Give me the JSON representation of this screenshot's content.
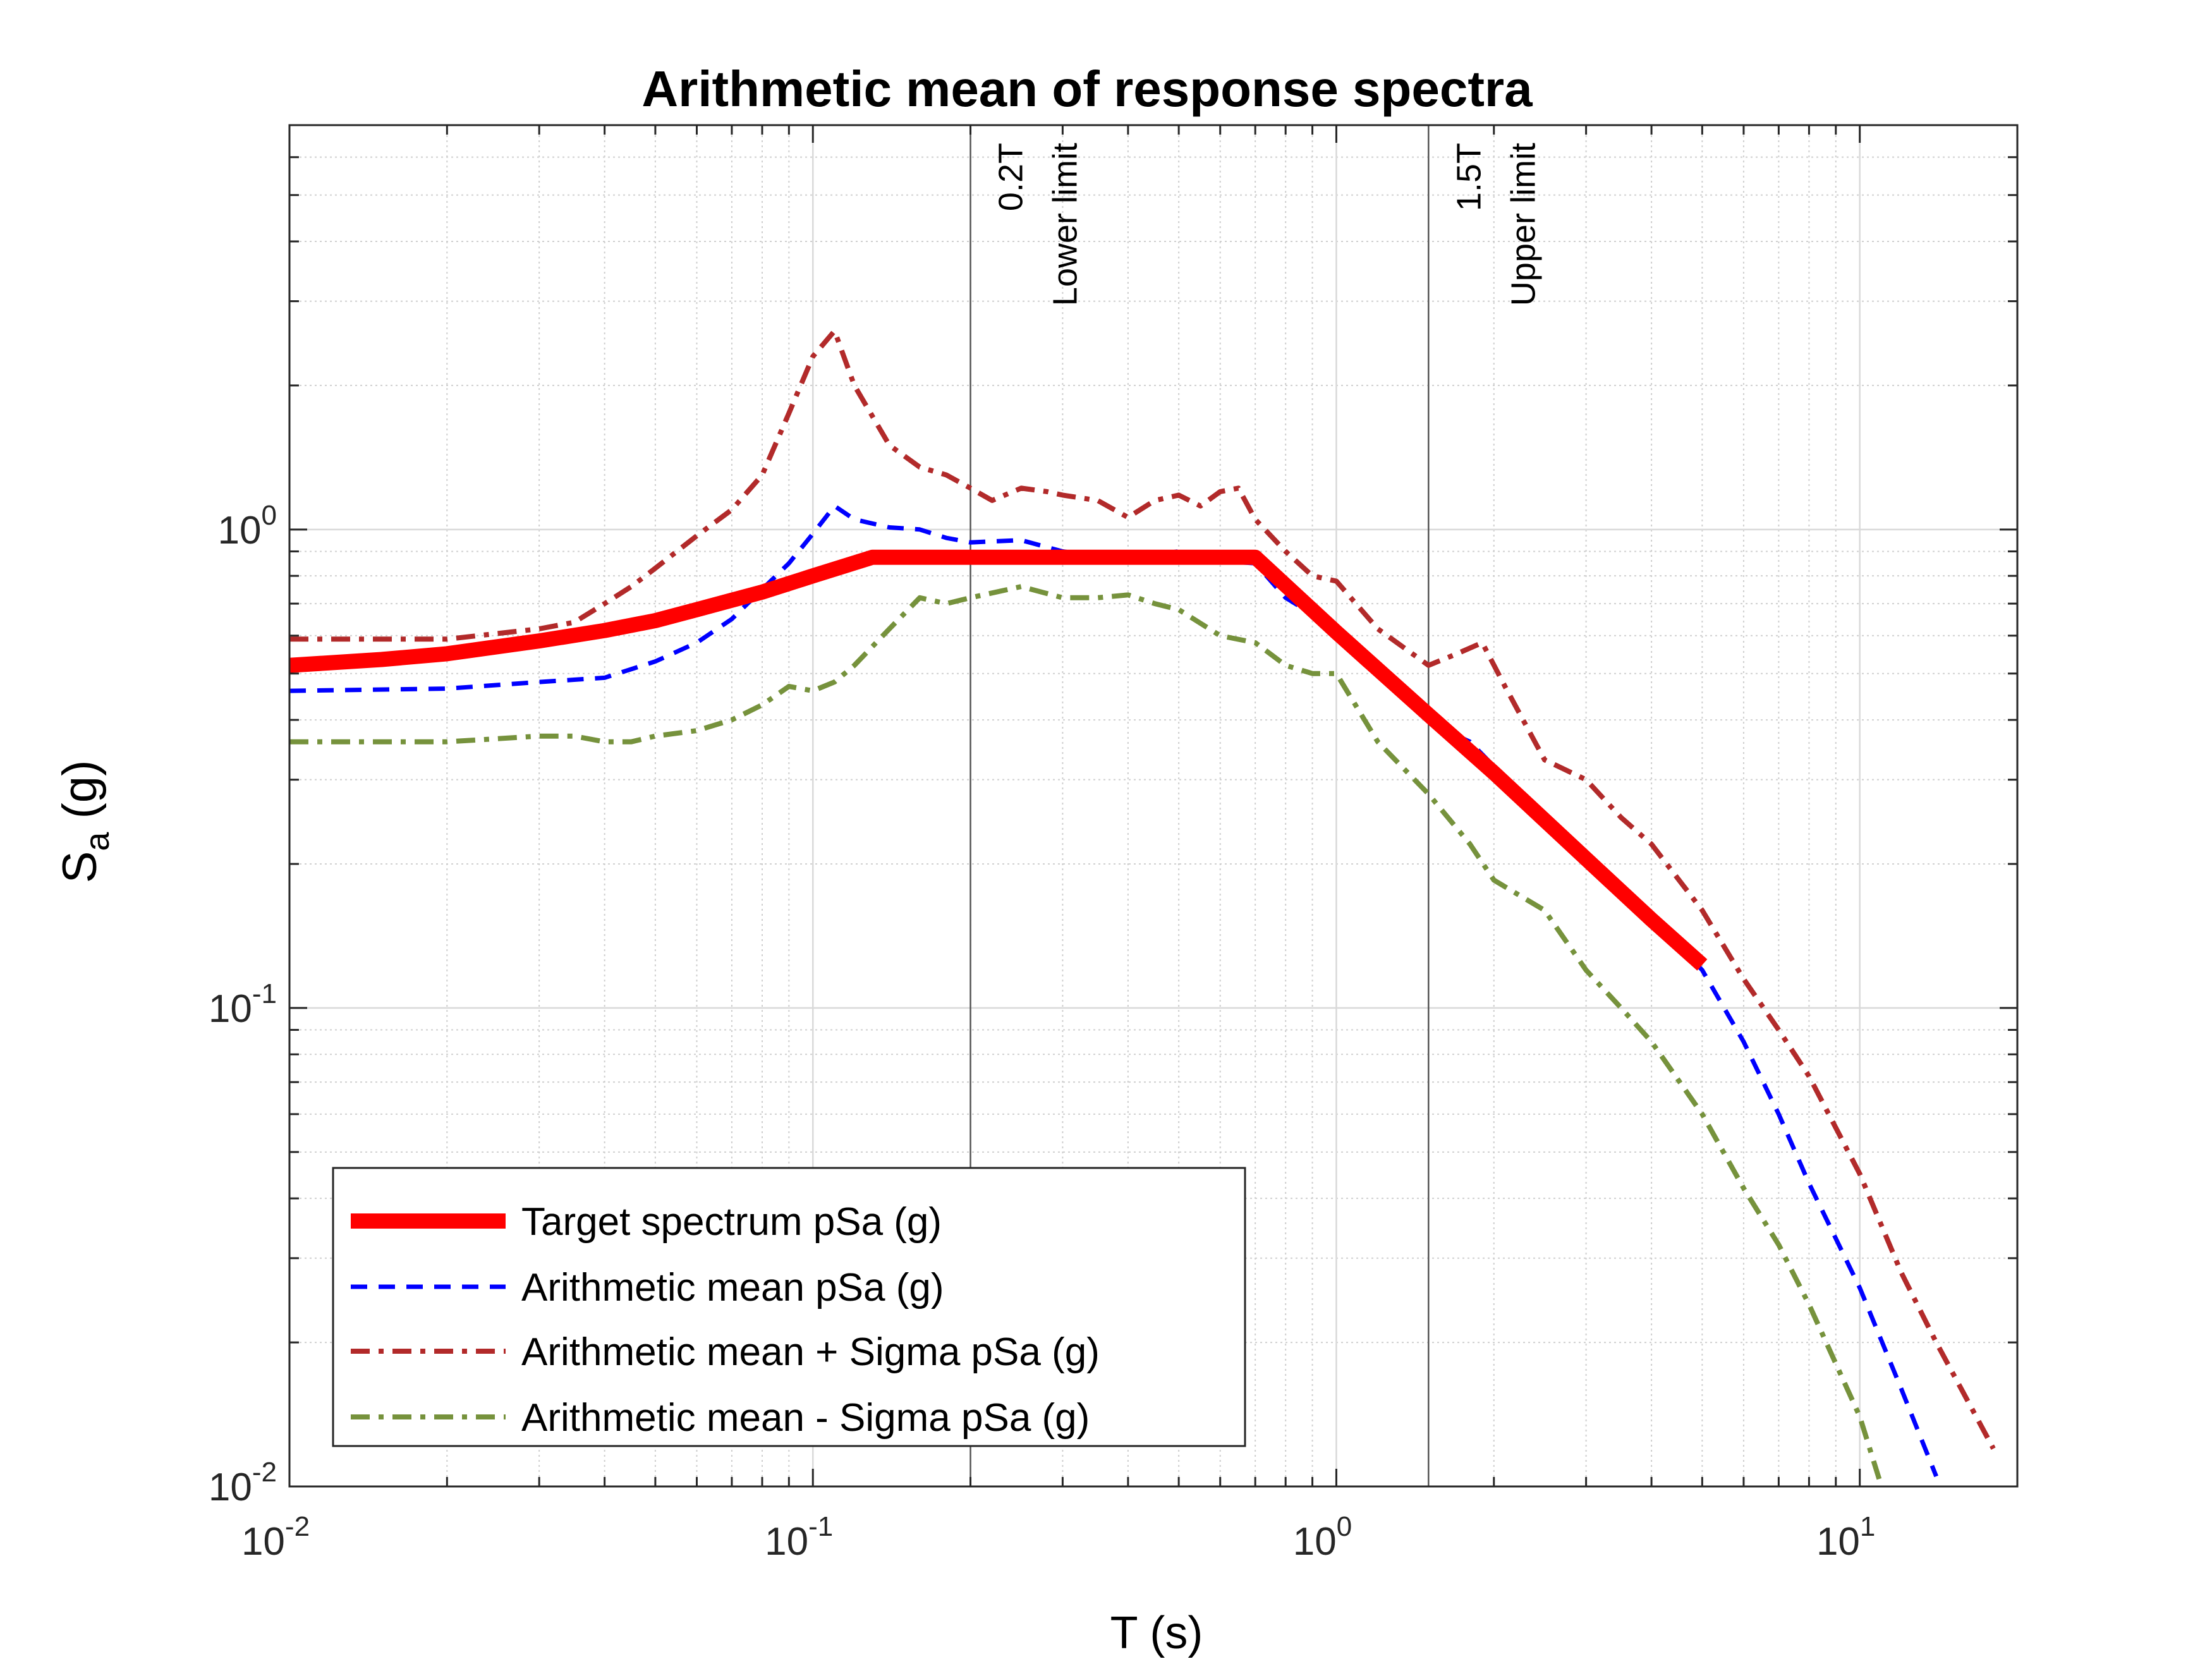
{
  "chart_data": {
    "type": "line",
    "title": "Arithmetic mean of response spectra",
    "xlabel": "T (s)",
    "ylabel_main": "S",
    "ylabel_sub": "a",
    "ylabel_unit": " (g)",
    "xscale": "log",
    "yscale": "log",
    "xlim": [
      0.01,
      20
    ],
    "ylim": [
      0.01,
      7
    ],
    "grid": true,
    "legend_position": "bottom-left",
    "x_ticks": [
      {
        "value": 0.01,
        "base": "10",
        "exp": "-2"
      },
      {
        "value": 0.1,
        "base": "10",
        "exp": "-1"
      },
      {
        "value": 1,
        "base": "10",
        "exp": "0"
      },
      {
        "value": 10,
        "base": "10",
        "exp": "1"
      }
    ],
    "y_ticks": [
      {
        "value": 0.01,
        "base": "10",
        "exp": "-2"
      },
      {
        "value": 0.1,
        "base": "10",
        "exp": "-1"
      },
      {
        "value": 1,
        "base": "10",
        "exp": "0"
      }
    ],
    "vertical_lines": [
      {
        "x": 0.2,
        "label1": "0.2T",
        "label2": "Lower limit"
      },
      {
        "x": 1.5,
        "label1": "1.5T",
        "label2": "Upper limit"
      }
    ],
    "series": [
      {
        "name": "Target spectrum pSa (g)",
        "color": "#ff0000",
        "style": "solid",
        "x": [
          0.01,
          0.015,
          0.02,
          0.03,
          0.04,
          0.05,
          0.06,
          0.08,
          0.1,
          0.13,
          0.2,
          0.3,
          0.5,
          0.7,
          1.0,
          1.5,
          2.0,
          3.0,
          4.0,
          5.0
        ],
        "y": [
          0.52,
          0.535,
          0.55,
          0.585,
          0.615,
          0.645,
          0.68,
          0.74,
          0.8,
          0.875,
          0.875,
          0.875,
          0.875,
          0.875,
          0.61,
          0.41,
          0.31,
          0.205,
          0.153,
          0.123
        ]
      },
      {
        "name": "Arithmetic mean pSa (g)",
        "color": "#0000ff",
        "style": "dashed",
        "x": [
          0.01,
          0.02,
          0.03,
          0.04,
          0.05,
          0.06,
          0.07,
          0.08,
          0.09,
          0.1,
          0.11,
          0.12,
          0.14,
          0.16,
          0.18,
          0.2,
          0.25,
          0.3,
          0.35,
          0.4,
          0.5,
          0.6,
          0.7,
          0.8,
          1.0,
          1.2,
          1.5,
          1.8,
          2.0,
          2.5,
          3.0,
          3.5,
          4.0,
          5.0,
          6.0,
          7.0,
          8.0,
          10.0,
          12.0,
          14.0
        ],
        "y": [
          0.46,
          0.465,
          0.48,
          0.49,
          0.53,
          0.58,
          0.65,
          0.75,
          0.85,
          0.98,
          1.12,
          1.05,
          1.01,
          1.0,
          0.96,
          0.94,
          0.95,
          0.9,
          0.88,
          0.87,
          0.9,
          0.86,
          0.85,
          0.72,
          0.62,
          0.5,
          0.395,
          0.36,
          0.32,
          0.25,
          0.2,
          0.17,
          0.155,
          0.12,
          0.085,
          0.06,
          0.043,
          0.026,
          0.016,
          0.0105
        ]
      },
      {
        "name": "Arithmetic mean + Sigma pSa (g)",
        "color": "#b22a2a",
        "style": "dashdot",
        "x": [
          0.01,
          0.02,
          0.03,
          0.035,
          0.04,
          0.045,
          0.05,
          0.06,
          0.07,
          0.08,
          0.09,
          0.1,
          0.11,
          0.12,
          0.14,
          0.16,
          0.18,
          0.2,
          0.22,
          0.25,
          0.28,
          0.3,
          0.35,
          0.4,
          0.45,
          0.5,
          0.55,
          0.6,
          0.65,
          0.7,
          0.8,
          0.9,
          1.0,
          1.2,
          1.5,
          1.7,
          1.9,
          2.1,
          2.5,
          3.0,
          3.5,
          4.0,
          5.0,
          6.0,
          7.0,
          8.0,
          10.0,
          12.0,
          14.0,
          18.0
        ],
        "y": [
          0.59,
          0.59,
          0.62,
          0.64,
          0.7,
          0.76,
          0.83,
          0.97,
          1.1,
          1.3,
          1.75,
          2.3,
          2.6,
          2.0,
          1.5,
          1.35,
          1.3,
          1.22,
          1.15,
          1.22,
          1.2,
          1.18,
          1.15,
          1.06,
          1.15,
          1.18,
          1.12,
          1.2,
          1.22,
          1.05,
          0.9,
          0.8,
          0.78,
          0.62,
          0.52,
          0.55,
          0.58,
          0.47,
          0.33,
          0.3,
          0.25,
          0.22,
          0.16,
          0.115,
          0.09,
          0.072,
          0.045,
          0.028,
          0.02,
          0.012
        ]
      },
      {
        "name": "Arithmetic mean - Sigma pSa (g)",
        "color": "#76923c",
        "style": "dashdot",
        "x": [
          0.01,
          0.02,
          0.03,
          0.035,
          0.04,
          0.045,
          0.05,
          0.06,
          0.07,
          0.08,
          0.09,
          0.1,
          0.11,
          0.12,
          0.14,
          0.16,
          0.18,
          0.2,
          0.25,
          0.3,
          0.35,
          0.4,
          0.45,
          0.5,
          0.6,
          0.7,
          0.8,
          0.9,
          1.0,
          1.2,
          1.5,
          1.8,
          2.0,
          2.5,
          3.0,
          3.5,
          4.0,
          5.0,
          6.0,
          7.0,
          8.0,
          10.0,
          11.0
        ],
        "y": [
          0.36,
          0.36,
          0.37,
          0.37,
          0.36,
          0.36,
          0.37,
          0.38,
          0.4,
          0.43,
          0.47,
          0.46,
          0.48,
          0.52,
          0.62,
          0.72,
          0.7,
          0.72,
          0.76,
          0.72,
          0.72,
          0.73,
          0.7,
          0.68,
          0.6,
          0.58,
          0.52,
          0.5,
          0.5,
          0.36,
          0.28,
          0.22,
          0.185,
          0.16,
          0.12,
          0.1,
          0.085,
          0.06,
          0.042,
          0.032,
          0.024,
          0.014,
          0.01
        ]
      }
    ]
  }
}
